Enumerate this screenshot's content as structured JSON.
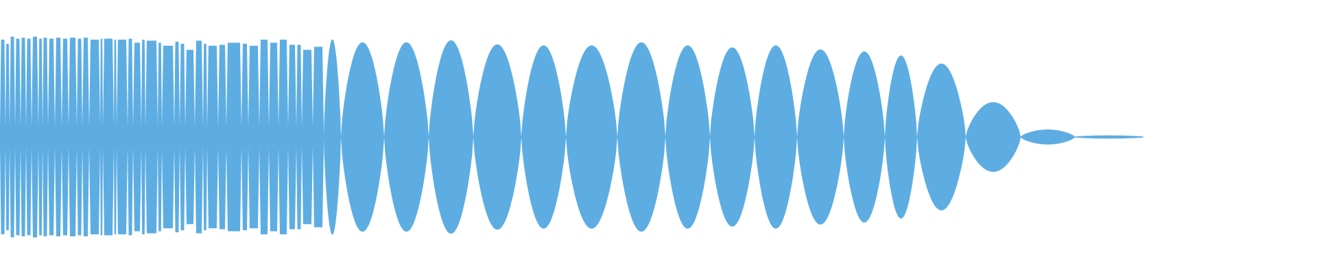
{
  "chart_data": {
    "type": "area",
    "title": "",
    "xlabel": "",
    "ylabel": "",
    "grid": false,
    "axes_visible": false,
    "color": "#5dade2",
    "background": "#ffffff",
    "ylim": [
      -1,
      1
    ],
    "xlim": [
      0,
      1920
    ],
    "pulse_section": {
      "start": 0,
      "end": 472,
      "boundaries": [
        0,
        8,
        14,
        22,
        30,
        38,
        46,
        56,
        62,
        70,
        80,
        90,
        100,
        112,
        120,
        130,
        146,
        150,
        166,
        170,
        186,
        194,
        206,
        212,
        230,
        236,
        254,
        262,
        270,
        284,
        296,
        302,
        318,
        330,
        352,
        362,
        378,
        392,
        406,
        420,
        432,
        440,
        456,
        472
      ],
      "peaks": [
        0.96,
        0.92,
        0.99,
        0.97,
        0.98,
        0.97,
        0.99,
        0.97,
        0.98,
        0.97,
        0.98,
        0.97,
        0.98,
        0.97,
        0.98,
        0.96,
        0.97,
        0.97,
        0.96,
        0.96,
        0.97,
        0.93,
        0.96,
        0.95,
        0.93,
        0.9,
        0.94,
        0.92,
        0.86,
        0.95,
        0.92,
        0.9,
        0.91,
        0.93,
        0.92,
        0.9,
        0.96,
        0.93,
        0.96,
        0.91,
        0.91,
        0.86,
        0.89
      ],
      "floor": 0.1
    },
    "lobes": [
      {
        "start": 472,
        "end": 497,
        "peak": 0.96
      },
      {
        "start": 497,
        "end": 560,
        "peak": 0.93
      },
      {
        "start": 560,
        "end": 625,
        "peak": 0.93
      },
      {
        "start": 625,
        "end": 690,
        "peak": 0.95
      },
      {
        "start": 690,
        "end": 760,
        "peak": 0.91
      },
      {
        "start": 760,
        "end": 825,
        "peak": 0.9
      },
      {
        "start": 825,
        "end": 900,
        "peak": 0.9
      },
      {
        "start": 900,
        "end": 970,
        "peak": 0.93
      },
      {
        "start": 970,
        "end": 1035,
        "peak": 0.9
      },
      {
        "start": 1035,
        "end": 1100,
        "peak": 0.88
      },
      {
        "start": 1100,
        "end": 1162,
        "peak": 0.9
      },
      {
        "start": 1162,
        "end": 1230,
        "peak": 0.86
      },
      {
        "start": 1230,
        "end": 1290,
        "peak": 0.84
      },
      {
        "start": 1290,
        "end": 1337,
        "peak": 0.8
      },
      {
        "start": 1337,
        "end": 1408,
        "peak": 0.72
      },
      {
        "start": 1408,
        "end": 1488,
        "peak": 0.34
      },
      {
        "start": 1488,
        "end": 1567,
        "peak": 0.07
      },
      {
        "start": 1567,
        "end": 1667,
        "peak": 0.012
      }
    ]
  }
}
